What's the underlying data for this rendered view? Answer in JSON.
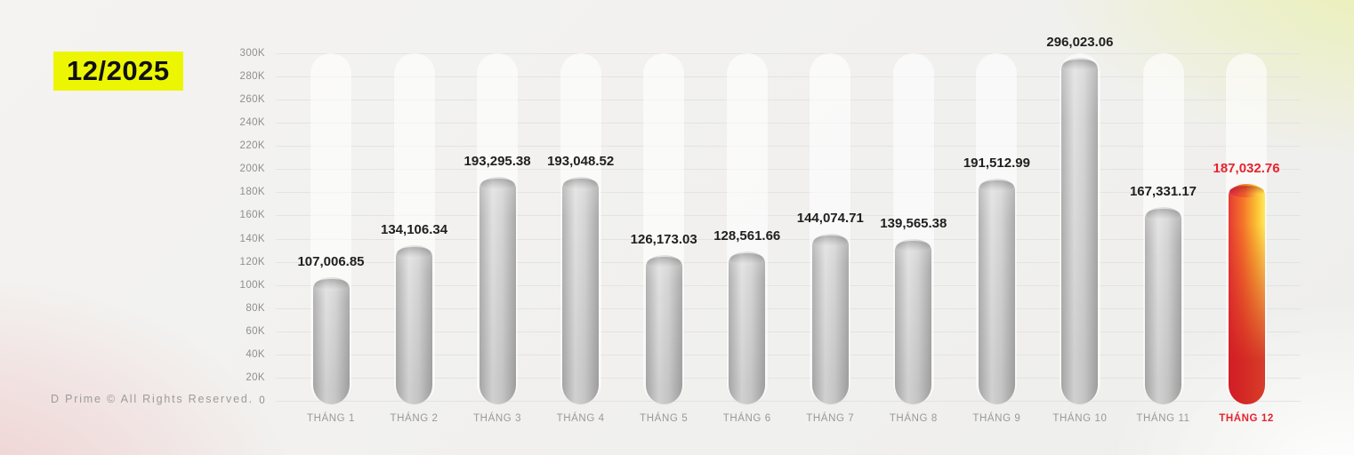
{
  "badge": {
    "label": "12/2025",
    "bg_color": "#edf602",
    "text_color": "#111111"
  },
  "footer": {
    "text": "D Prime © All Rights Reserved."
  },
  "chart_data": {
    "type": "bar",
    "title": "",
    "xlabel": "",
    "ylabel": "",
    "categories": [
      "THÁNG 1",
      "THÁNG 2",
      "THÁNG 3",
      "THÁNG 4",
      "THÁNG 5",
      "THÁNG 6",
      "THÁNG 7",
      "THÁNG 8",
      "THÁNG 9",
      "THÁNG 10",
      "THÁNG 11",
      "THÁNG 12"
    ],
    "values": [
      107006.85,
      134106.34,
      193295.38,
      193048.52,
      126173.03,
      128561.66,
      144074.71,
      139565.38,
      191512.99,
      296023.06,
      167331.17,
      187032.76
    ],
    "value_labels": [
      "107,006.85",
      "134,106.34",
      "193,295.38",
      "193,048.52",
      "126,173.03",
      "128,561.66",
      "144,074.71",
      "139,565.38",
      "191,512.99",
      "296,023.06",
      "167,331.17",
      "187,032.76"
    ],
    "ylim": [
      0,
      300000
    ],
    "y_tick_step": 20000,
    "y_tick_labels": [
      "0",
      "20K",
      "40K",
      "60K",
      "80K",
      "100K",
      "120K",
      "140K",
      "160K",
      "180K",
      "200K",
      "220K",
      "240K",
      "260K",
      "280K",
      "300K"
    ],
    "grid": true,
    "legend": "none",
    "highlight_index": 11,
    "colors": {
      "bar_gray": "#c9c9c9",
      "highlight_red": "#d5202a",
      "highlight_orange": "#f5752a",
      "highlight_yellow": "#ffe14d",
      "value_label": "#1f1f1f",
      "highlight_label": "#e8232d",
      "axis_label": "#979794",
      "gridline": "#e3e3e1",
      "track": "rgba(255,255,255,0.62)",
      "badge_bg": "#edf602"
    }
  }
}
